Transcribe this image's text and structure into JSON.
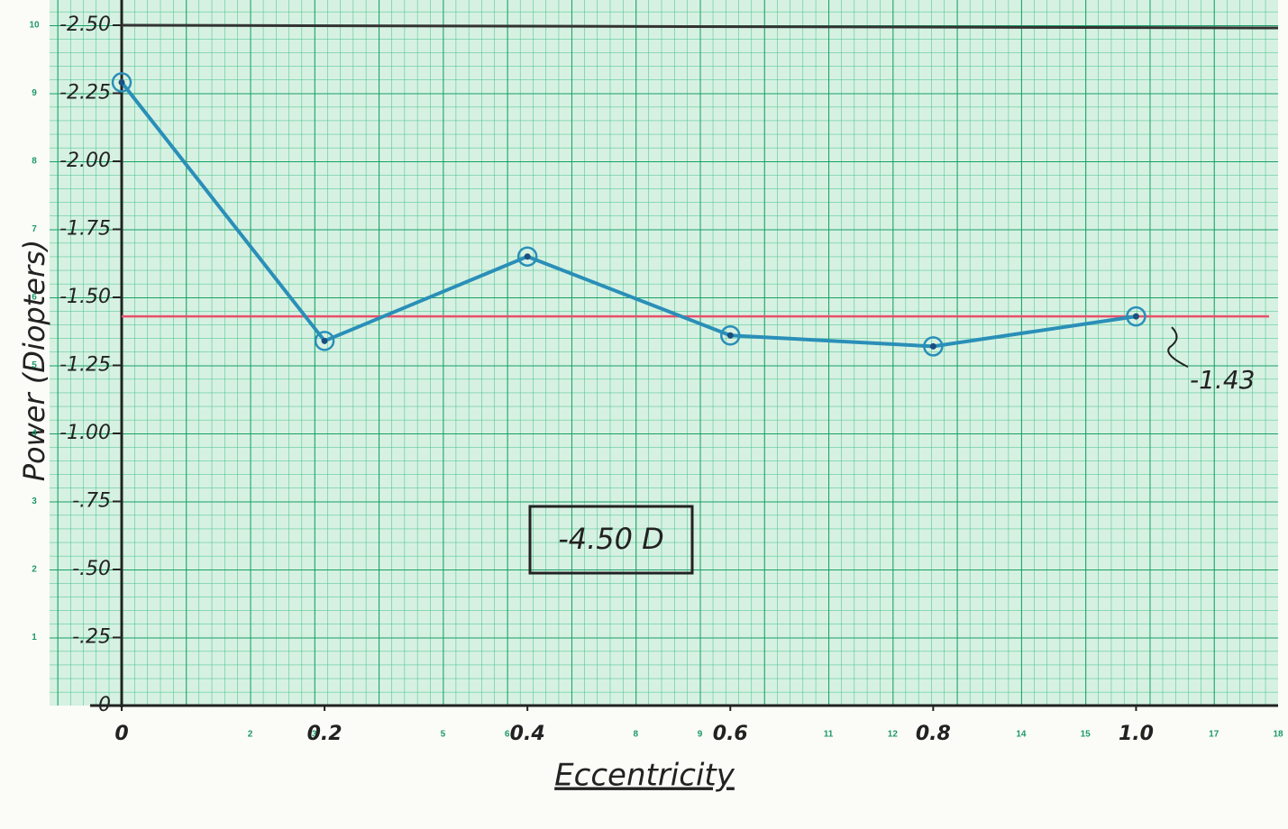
{
  "chart_data": {
    "type": "line",
    "x_label": "Eccentricity",
    "y_label": "Power (Diopters)",
    "annotation": "-4.50 D",
    "x": [
      0,
      0.2,
      0.4,
      0.6,
      0.8,
      1.0
    ],
    "series": [
      {
        "color": "#2a8fb8",
        "values": [
          -2.29,
          -1.34,
          -1.65,
          -1.36,
          -1.32,
          -1.43
        ]
      }
    ],
    "reference_line": {
      "value": -1.43,
      "label": "-1.43",
      "color": "#e8506a"
    },
    "xlim": [
      0,
      1.14
    ],
    "ylim": [
      0,
      -2.5
    ],
    "xticks": [
      0,
      0.2,
      0.4,
      0.6,
      {
        "value": 0.8,
        "label": "0.8"
      },
      {
        "value": 1,
        "label": "1.0"
      }
    ],
    "yticks": [
      0,
      {
        "value": -0.25,
        "label": "-.25"
      },
      {
        "value": -0.5,
        "label": "-.50"
      },
      {
        "value": -0.75,
        "label": "-.75"
      },
      {
        "value": -1,
        "label": "-1.00"
      },
      -1.25,
      {
        "value": -1.5,
        "label": "-1.50"
      },
      -1.75,
      {
        "value": -2,
        "label": "-2.00"
      },
      -2.25,
      {
        "value": -2.5,
        "label": "-2.50"
      }
    ],
    "paper_xticks": [
      2,
      3,
      5,
      6,
      8,
      9,
      11,
      12,
      14,
      15,
      17,
      18
    ],
    "paper_yticks": [
      1,
      2,
      3,
      4,
      5,
      6,
      7,
      8,
      9,
      10
    ]
  }
}
